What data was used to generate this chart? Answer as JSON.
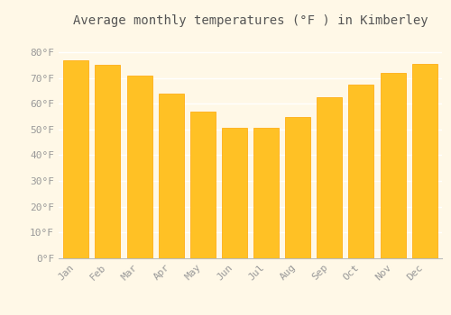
{
  "title": "Average monthly temperatures (°F ) in Kimberley",
  "months": [
    "Jan",
    "Feb",
    "Mar",
    "Apr",
    "May",
    "Jun",
    "Jul",
    "Aug",
    "Sep",
    "Oct",
    "Nov",
    "Dec"
  ],
  "values": [
    77,
    75,
    71,
    64,
    57,
    50.5,
    50.5,
    55,
    62.5,
    67.5,
    72,
    75.5
  ],
  "bar_color_face": "#FFC125",
  "bar_color_edge": "#FFA500",
  "background_color": "#FFF8E7",
  "plot_bg_color": "#FFFFFF",
  "grid_color": "#FFFFFF",
  "text_color": "#999999",
  "title_color": "#555555",
  "ylim": [
    0,
    88
  ],
  "yticks": [
    0,
    10,
    20,
    30,
    40,
    50,
    60,
    70,
    80
  ],
  "ytick_labels": [
    "0°F",
    "10°F",
    "20°F",
    "30°F",
    "40°F",
    "50°F",
    "60°F",
    "70°F",
    "80°F"
  ],
  "title_fontsize": 10,
  "tick_fontsize": 8
}
